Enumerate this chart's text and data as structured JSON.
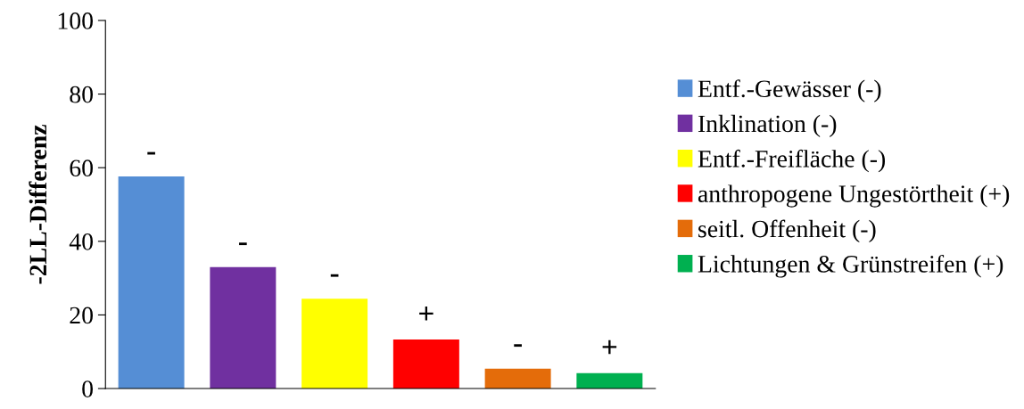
{
  "chart_data": {
    "type": "bar",
    "ylabel": "-2LL-Differenz",
    "categories": [
      null,
      null,
      null,
      null,
      null,
      null
    ],
    "series": [
      {
        "name": "Entf.-Gewässer (-)",
        "color": "#558ed5",
        "values": [
          57.6,
          null,
          null,
          null,
          null,
          null
        ],
        "value_labels": [
          "-",
          null,
          null,
          null,
          null,
          null
        ]
      },
      {
        "name": "Inklination (-)",
        "color": "#7030a0",
        "values": [
          null,
          33.0,
          null,
          null,
          null,
          null
        ],
        "value_labels": [
          null,
          "-",
          null,
          null,
          null,
          null
        ]
      },
      {
        "name": "Entf.-Freifläche (-)",
        "color": "#ffff00",
        "values": [
          null,
          null,
          24.4,
          null,
          null,
          null
        ],
        "value_labels": [
          null,
          null,
          "-",
          null,
          null,
          null
        ]
      },
      {
        "name": "anthropogene Ungestörtheit (+)",
        "color": "#ff0000",
        "values": [
          null,
          null,
          null,
          13.3,
          null,
          null
        ],
        "value_labels": [
          null,
          null,
          null,
          "+",
          null,
          null
        ]
      },
      {
        "name": "seitl. Offenheit (-)",
        "color": "#e46c0a",
        "values": [
          null,
          null,
          null,
          null,
          5.4,
          null
        ],
        "value_labels": [
          null,
          null,
          null,
          null,
          "-",
          null
        ]
      },
      {
        "name": "Lichtungen & Grünstreifen (+)",
        "color": "#00b050",
        "values": [
          null,
          null,
          null,
          null,
          null,
          4.2
        ],
        "value_labels": [
          null,
          null,
          null,
          null,
          null,
          "+"
        ]
      }
    ],
    "ylim": [
      0,
      100
    ],
    "yticks": [
      0,
      20,
      40,
      60,
      80,
      100
    ],
    "grid": false,
    "legend": "right"
  }
}
